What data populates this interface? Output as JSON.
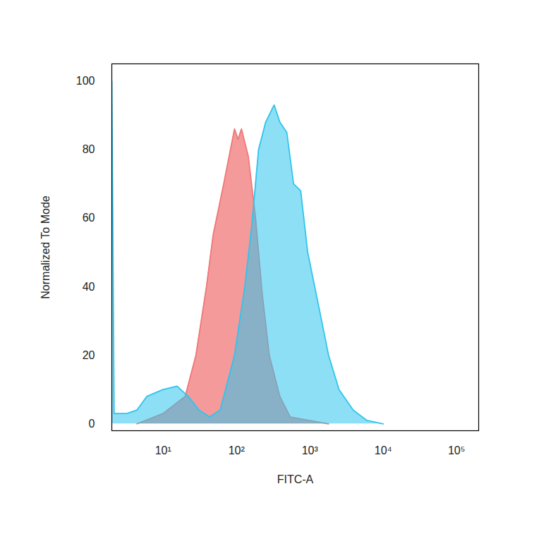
{
  "chart_data": {
    "type": "area",
    "x_label": "FITC-A",
    "y_label": "Normalized To Mode",
    "log": "x",
    "grid": false,
    "xlim": [
      2,
      200000
    ],
    "xticks": [
      {
        "value": 10,
        "label": "10¹"
      },
      {
        "value": 100,
        "label": "10²"
      },
      {
        "value": 1000,
        "label": "10³"
      },
      {
        "value": 10000,
        "label": "10⁴"
      },
      {
        "value": 100000,
        "label": "10⁵"
      }
    ],
    "ylim": [
      -2,
      105
    ],
    "yticks": [
      0,
      20,
      40,
      60,
      80,
      100
    ],
    "series": [
      {
        "color": "#f07878",
        "x": [
          4.4,
          10,
          20,
          28,
          39,
          48,
          67,
          94,
          105,
          117,
          145,
          182,
          224,
          280,
          390,
          540,
          1800
        ],
        "values": [
          0,
          3,
          8,
          20,
          40,
          55,
          70,
          86,
          83,
          86,
          78,
          60,
          38,
          20,
          8,
          2,
          0
        ]
      },
      {
        "color": "#30c4ec",
        "x": [
          2,
          2.15,
          3.2,
          4.4,
          6,
          10,
          15.5,
          22,
          31,
          43,
          60,
          94,
          130,
          162,
          200,
          250,
          326,
          390,
          485,
          600,
          750,
          935,
          1300,
          1800,
          2500,
          3900,
          6000,
          10000
        ],
        "values": [
          100,
          3,
          3,
          4,
          8,
          10,
          11,
          8,
          4,
          2,
          4,
          20,
          40,
          58,
          80,
          88,
          93,
          88,
          85,
          70,
          68,
          50,
          35,
          20,
          10,
          4,
          1,
          0
        ]
      }
    ]
  }
}
